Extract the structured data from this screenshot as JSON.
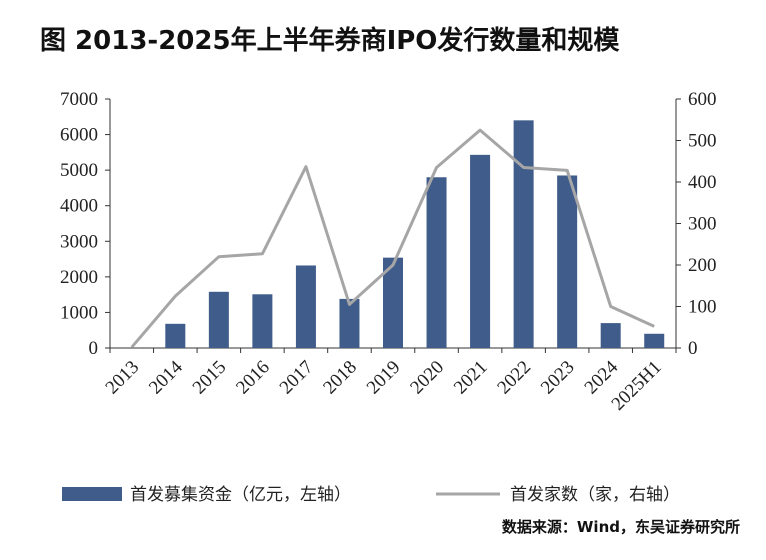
{
  "page": {
    "title": "图  2013-2025年上半年券商IPO发行数量和规模",
    "source": "数据来源：Wind，东吴证券研究所"
  },
  "chart_data": {
    "type": "bar",
    "title": "2013-2025年上半年券商IPO发行数量和规模",
    "categories": [
      "2013",
      "2014",
      "2015",
      "2016",
      "2017",
      "2018",
      "2019",
      "2020",
      "2021",
      "2022",
      "2023",
      "2024",
      "2025H1"
    ],
    "series": [
      {
        "name": "首发募集资金（亿元，左轴）",
        "type": "bar",
        "axis": "left",
        "color": "#3f5c8a",
        "values": [
          0,
          680,
          1580,
          1510,
          2320,
          1380,
          2540,
          4800,
          5430,
          6400,
          4850,
          700,
          400
        ]
      },
      {
        "name": "首发家数（家，右轴）",
        "type": "line",
        "axis": "right",
        "color": "#a6a6a6",
        "values": [
          2,
          125,
          220,
          227,
          437,
          105,
          200,
          435,
          525,
          435,
          428,
          100,
          52
        ]
      }
    ],
    "left_axis": {
      "ylim": [
        0,
        7000
      ],
      "ticks": [
        "0",
        "1000",
        "2000",
        "3000",
        "4000",
        "5000",
        "6000",
        "7000"
      ]
    },
    "right_axis": {
      "ylim": [
        0,
        600
      ],
      "ticks": [
        "0",
        "100",
        "200",
        "300",
        "400",
        "500",
        "600"
      ]
    },
    "legend": {
      "position": "bottom",
      "labels": [
        "首发募集资金（亿元，左轴）",
        "首发家数（家，右轴）"
      ]
    }
  }
}
